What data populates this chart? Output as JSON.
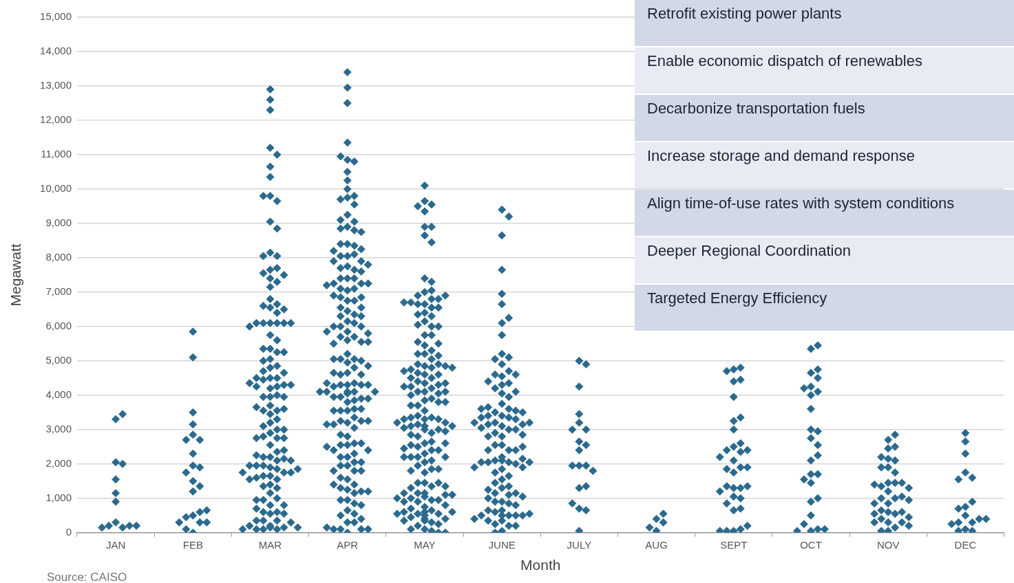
{
  "chart_data": {
    "type": "scatter",
    "xlabel": "Month",
    "ylabel": "Megawatt",
    "categories": [
      "JAN",
      "FEB",
      "MAR",
      "APR",
      "MAY",
      "JUNE",
      "JULY",
      "AUG",
      "SEPT",
      "OCT",
      "NOV",
      "DEC"
    ],
    "ylim": [
      0,
      15000
    ],
    "yticks": [
      0,
      {
        "value": 1000,
        "label": "1,000"
      },
      {
        "value": 2000,
        "label": "2,000"
      },
      {
        "value": 3000,
        "label": "3,000"
      },
      {
        "value": 4000,
        "label": "4,000"
      },
      {
        "value": 5000,
        "label": "5,000"
      },
      {
        "value": 6000,
        "label": "6,000"
      },
      {
        "value": 7000,
        "label": "7,000"
      },
      {
        "value": 8000,
        "label": "8,000"
      },
      {
        "value": 9000,
        "label": "9,000"
      },
      {
        "value": 10000,
        "label": "10,000"
      },
      {
        "value": 11000,
        "label": "11,000"
      },
      {
        "value": 12000,
        "label": "12,000"
      },
      {
        "value": 13000,
        "label": "13,000"
      },
      {
        "value": 14000,
        "label": "14,000"
      },
      {
        "value": 15000,
        "label": "15,000"
      }
    ],
    "grid": "y",
    "legend": false,
    "marker": "diamond",
    "annotations": [
      "Retrofit existing power plants",
      "Enable economic dispatch of renewables",
      "Decarbonize transportation fuels",
      "Increase storage and demand response",
      "Align time-of-use rates with system conditions",
      "Deeper Regional Coordination",
      "Targeted Energy Efficiency",
      "Source: CAISO"
    ],
    "series": [
      {
        "color": "#2b6a8e",
        "x": [
          "JAN",
          "JAN",
          "JAN",
          "JAN",
          "JAN",
          "JAN",
          "JAN",
          "JAN",
          "JAN",
          "JAN",
          "JAN",
          "JAN",
          "JAN",
          "FEB",
          "FEB",
          "FEB",
          "FEB",
          "FEB",
          "FEB",
          "FEB",
          "FEB",
          "FEB",
          "FEB",
          "FEB",
          "FEB",
          "FEB",
          "FEB",
          "FEB",
          "FEB",
          "FEB",
          "FEB",
          "FEB",
          "FEB",
          "FEB",
          "FEB",
          "FEB",
          "MAR",
          "MAR",
          "MAR",
          "MAR",
          "MAR",
          "MAR",
          "MAR",
          "MAR",
          "MAR",
          "MAR",
          "MAR",
          "MAR",
          "MAR",
          "MAR",
          "MAR",
          "MAR",
          "MAR",
          "MAR",
          "MAR",
          "MAR",
          "MAR",
          "MAR",
          "MAR",
          "MAR",
          "MAR",
          "MAR",
          "MAR",
          "MAR",
          "MAR",
          "MAR",
          "MAR",
          "MAR",
          "MAR",
          "MAR",
          "MAR",
          "MAR",
          "MAR",
          "MAR",
          "MAR",
          "MAR",
          "MAR",
          "MAR",
          "MAR",
          "MAR",
          "MAR",
          "MAR",
          "MAR",
          "MAR",
          "MAR",
          "MAR",
          "MAR",
          "MAR",
          "MAR",
          "MAR",
          "MAR",
          "MAR",
          "MAR",
          "MAR",
          "MAR",
          "MAR",
          "MAR",
          "MAR",
          "MAR",
          "MAR",
          "MAR",
          "MAR",
          "MAR",
          "MAR",
          "MAR",
          "MAR",
          "MAR",
          "MAR",
          "MAR",
          "MAR",
          "MAR",
          "MAR",
          "MAR",
          "MAR",
          "MAR",
          "MAR",
          "MAR",
          "MAR",
          "MAR",
          "MAR",
          "MAR",
          "MAR",
          "MAR",
          "MAR",
          "MAR",
          "MAR",
          "MAR",
          "MAR",
          "MAR",
          "MAR",
          "MAR",
          "MAR",
          "MAR",
          "MAR",
          "MAR",
          "MAR",
          "MAR",
          "MAR",
          "MAR",
          "MAR",
          "MAR",
          "MAR",
          "MAR",
          "MAR",
          "MAR",
          "MAR",
          "MAR",
          "MAR",
          "MAR",
          "MAR",
          "MAR",
          "MAR",
          "MAR",
          "MAR",
          "MAR",
          "MAR",
          "MAR",
          "MAR",
          "MAR",
          "MAR",
          "MAR",
          "MAR",
          "MAR",
          "APR",
          "APR",
          "APR",
          "APR",
          "APR",
          "APR",
          "APR",
          "APR",
          "APR",
          "APR",
          "APR",
          "APR",
          "APR",
          "APR",
          "APR",
          "APR",
          "APR",
          "APR",
          "APR",
          "APR",
          "APR",
          "APR",
          "APR",
          "APR",
          "APR",
          "APR",
          "APR",
          "APR",
          "APR",
          "APR",
          "APR",
          "APR",
          "APR",
          "APR",
          "APR",
          "APR",
          "APR",
          "APR",
          "APR",
          "APR",
          "APR",
          "APR",
          "APR",
          "APR",
          "APR",
          "APR",
          "APR",
          "APR",
          "APR",
          "APR",
          "APR",
          "APR",
          "APR",
          "APR",
          "APR",
          "APR",
          "APR",
          "APR",
          "APR",
          "APR",
          "APR",
          "APR",
          "APR",
          "APR",
          "APR",
          "APR",
          "APR",
          "APR",
          "APR",
          "APR",
          "APR",
          "APR",
          "APR",
          "APR",
          "APR",
          "APR",
          "APR",
          "APR",
          "APR",
          "APR",
          "APR",
          "APR",
          "APR",
          "APR",
          "APR",
          "APR",
          "APR",
          "APR",
          "APR",
          "APR",
          "APR",
          "APR",
          "APR",
          "APR",
          "APR",
          "APR",
          "APR",
          "APR",
          "APR",
          "APR",
          "APR",
          "APR",
          "APR",
          "APR",
          "APR",
          "APR",
          "APR",
          "APR",
          "APR",
          "APR",
          "APR",
          "APR",
          "APR",
          "APR",
          "APR",
          "APR",
          "APR",
          "APR",
          "APR",
          "APR",
          "APR",
          "APR",
          "APR",
          "APR",
          "APR",
          "APR",
          "APR",
          "APR",
          "APR",
          "APR",
          "APR",
          "APR",
          "APR",
          "APR",
          "APR",
          "APR",
          "APR",
          "APR",
          "APR",
          "APR",
          "APR",
          "APR",
          "APR",
          "APR",
          "APR",
          "APR",
          "APR",
          "APR",
          "APR",
          "APR",
          "APR",
          "APR",
          "APR",
          "APR",
          "APR",
          "APR",
          "APR",
          "APR",
          "APR",
          "MAY",
          "MAY",
          "MAY",
          "MAY",
          "MAY",
          "MAY",
          "MAY",
          "MAY",
          "MAY",
          "MAY",
          "MAY",
          "MAY",
          "MAY",
          "MAY",
          "MAY",
          "MAY",
          "MAY",
          "MAY",
          "MAY",
          "MAY",
          "MAY",
          "MAY",
          "MAY",
          "MAY",
          "MAY",
          "MAY",
          "MAY",
          "MAY",
          "MAY",
          "MAY",
          "MAY",
          "MAY",
          "MAY",
          "MAY",
          "MAY",
          "MAY",
          "MAY",
          "MAY",
          "MAY",
          "MAY",
          "MAY",
          "MAY",
          "MAY",
          "MAY",
          "MAY",
          "MAY",
          "MAY",
          "MAY",
          "MAY",
          "MAY",
          "MAY",
          "MAY",
          "MAY",
          "MAY",
          "MAY",
          "MAY",
          "MAY",
          "MAY",
          "MAY",
          "MAY",
          "MAY",
          "MAY",
          "MAY",
          "MAY",
          "MAY",
          "MAY",
          "MAY",
          "MAY",
          "MAY",
          "MAY",
          "MAY",
          "MAY",
          "MAY",
          "MAY",
          "MAY",
          "MAY",
          "MAY",
          "MAY",
          "MAY",
          "MAY",
          "MAY",
          "MAY",
          "MAY",
          "MAY",
          "MAY",
          "MAY",
          "MAY",
          "MAY",
          "MAY",
          "MAY",
          "MAY",
          "MAY",
          "MAY",
          "MAY",
          "MAY",
          "MAY",
          "MAY",
          "MAY",
          "MAY",
          "MAY",
          "MAY",
          "MAY",
          "MAY",
          "MAY",
          "MAY",
          "MAY",
          "MAY",
          "MAY",
          "MAY",
          "MAY",
          "MAY",
          "MAY",
          "MAY",
          "MAY",
          "MAY",
          "MAY",
          "MAY",
          "MAY",
          "MAY",
          "MAY",
          "MAY",
          "MAY",
          "MAY",
          "MAY",
          "MAY",
          "MAY",
          "MAY",
          "MAY",
          "MAY",
          "MAY",
          "MAY",
          "MAY",
          "MAY",
          "MAY",
          "MAY",
          "MAY",
          "MAY",
          "MAY",
          "MAY",
          "MAY",
          "MAY",
          "MAY",
          "MAY",
          "MAY",
          "MAY",
          "MAY",
          "MAY",
          "MAY",
          "MAY",
          "MAY",
          "MAY",
          "MAY",
          "MAY",
          "JUNE",
          "JUNE",
          "JUNE",
          "JUNE",
          "JUNE",
          "JUNE",
          "JUNE",
          "JUNE",
          "JUNE",
          "JUNE",
          "JUNE",
          "JUNE",
          "JUNE",
          "JUNE",
          "JUNE",
          "JUNE",
          "JUNE",
          "JUNE",
          "JUNE",
          "JUNE",
          "JUNE",
          "JUNE",
          "JUNE",
          "JUNE",
          "JUNE",
          "JUNE",
          "JUNE",
          "JUNE",
          "JUNE",
          "JUNE",
          "JUNE",
          "JUNE",
          "JUNE",
          "JUNE",
          "JUNE",
          "JUNE",
          "JUNE",
          "JUNE",
          "JUNE",
          "JUNE",
          "JUNE",
          "JUNE",
          "JUNE",
          "JUNE",
          "JUNE",
          "JUNE",
          "JUNE",
          "JUNE",
          "JUNE",
          "JUNE",
          "JUNE",
          "JUNE",
          "JUNE",
          "JUNE",
          "JUNE",
          "JUNE",
          "JUNE",
          "JUNE",
          "JUNE",
          "JUNE",
          "JUNE",
          "JUNE",
          "JUNE",
          "JUNE",
          "JUNE",
          "JUNE",
          "JUNE",
          "JUNE",
          "JUNE",
          "JUNE",
          "JUNE",
          "JUNE",
          "JUNE",
          "JUNE",
          "JUNE",
          "JUNE",
          "JUNE",
          "JUNE",
          "JUNE",
          "JUNE",
          "JUNE",
          "JUNE",
          "JUNE",
          "JUNE",
          "JUNE",
          "JUNE",
          "JUNE",
          "JUNE",
          "JUNE",
          "JUNE",
          "JUNE",
          "JUNE",
          "JUNE",
          "JUNE",
          "JUNE",
          "JUNE",
          "JUNE",
          "JUNE",
          "JUNE",
          "JUNE",
          "JULY",
          "JULY",
          "JULY",
          "JULY",
          "JULY",
          "JULY",
          "JULY",
          "JULY",
          "JULY",
          "JULY",
          "JULY",
          "JULY",
          "JULY",
          "JULY",
          "JULY",
          "JULY",
          "JULY",
          "JULY",
          "JULY",
          "JULY",
          "AUG",
          "AUG",
          "AUG",
          "AUG",
          "AUG",
          "SEPT",
          "SEPT",
          "SEPT",
          "SEPT",
          "SEPT",
          "SEPT",
          "SEPT",
          "SEPT",
          "SEPT",
          "SEPT",
          "SEPT",
          "SEPT",
          "SEPT",
          "SEPT",
          "SEPT",
          "SEPT",
          "SEPT",
          "SEPT",
          "SEPT",
          "SEPT",
          "SEPT",
          "SEPT",
          "SEPT",
          "SEPT",
          "SEPT",
          "SEPT",
          "SEPT",
          "SEPT",
          "SEPT",
          "SEPT",
          "SEPT",
          "SEPT",
          "SEPT",
          "SEPT",
          "SEPT",
          "OCT",
          "OCT",
          "OCT",
          "OCT",
          "OCT",
          "OCT",
          "OCT",
          "OCT",
          "OCT",
          "OCT",
          "OCT",
          "OCT",
          "OCT",
          "OCT",
          "OCT",
          "OCT",
          "OCT",
          "OCT",
          "OCT",
          "OCT",
          "OCT",
          "OCT",
          "OCT",
          "OCT",
          "OCT",
          "OCT",
          "OCT",
          "OCT",
          "NOV",
          "NOV",
          "NOV",
          "NOV",
          "NOV",
          "NOV",
          "NOV",
          "NOV",
          "NOV",
          "NOV",
          "NOV",
          "NOV",
          "NOV",
          "NOV",
          "NOV",
          "NOV",
          "NOV",
          "NOV",
          "NOV",
          "NOV",
          "NOV",
          "NOV",
          "NOV",
          "NOV",
          "NOV",
          "NOV",
          "NOV",
          "NOV",
          "NOV",
          "NOV",
          "NOV",
          "NOV",
          "NOV",
          "NOV",
          "NOV",
          "NOV",
          "NOV",
          "DEC",
          "DEC",
          "DEC",
          "DEC",
          "DEC",
          "DEC",
          "DEC",
          "DEC",
          "DEC",
          "DEC",
          "DEC",
          "DEC",
          "DEC",
          "DEC",
          "DEC",
          "DEC",
          "DEC",
          "DEC"
        ],
        "values": [
          3300,
          3450,
          2050,
          2000,
          1550,
          1150,
          900,
          300,
          150,
          200,
          200,
          150,
          200,
          5850,
          5100,
          3500,
          3150,
          2850,
          2700,
          2700,
          2300,
          1950,
          1900,
          1750,
          1500,
          1350,
          1200,
          500,
          600,
          450,
          300,
          650,
          300,
          300,
          0,
          100,
          12900,
          12600,
          12300,
          11200,
          11000,
          10650,
          10350,
          9800,
          9650,
          9800,
          9050,
          8850,
          8150,
          8050,
          8050,
          7650,
          7700,
          7550,
          7400,
          7500,
          7300,
          7150,
          6800,
          6650,
          6550,
          6400,
          6600,
          6500,
          6100,
          6100,
          6100,
          6100,
          6100,
          6100,
          6000,
          5750,
          5600,
          5350,
          5250,
          5350,
          5250,
          5050,
          4850,
          5000,
          4800,
          4700,
          4650,
          4500,
          4500,
          4500,
          4450,
          4300,
          4300,
          4200,
          4350,
          4250,
          4250,
          3950,
          4000,
          3950,
          3950,
          3700,
          3550,
          3450,
          3550,
          3600,
          3650,
          3300,
          3200,
          3100,
          3000,
          3000,
          2900,
          2800,
          2750,
          2750,
          2550,
          2750,
          2350,
          2200,
          2200,
          2150,
          2400,
          2250,
          2100,
          2100,
          1900,
          1850,
          1950,
          1950,
          1950,
          1750,
          1750,
          1850,
          1750,
          1650,
          1650,
          1550,
          1400,
          1600,
          1550,
          1300,
          1350,
          1150,
          1000,
          800,
          950,
          800,
          950,
          550,
          600,
          600,
          700,
          550,
          350,
          350,
          200,
          350,
          150,
          300,
          200,
          100,
          150,
          100,
          100,
          100,
          150,
          13400,
          12950,
          12500,
          11350,
          10850,
          10800,
          10950,
          10500,
          10250,
          10000,
          9800,
          9750,
          9700,
          9550,
          9250,
          9050,
          9100,
          8900,
          8800,
          8850,
          8750,
          8400,
          8350,
          8400,
          8250,
          8200,
          8050,
          8100,
          8050,
          7900,
          7900,
          7750,
          7650,
          7700,
          7800,
          7600,
          7400,
          7400,
          7400,
          7250,
          7250,
          7250,
          7200,
          7050,
          7100,
          7100,
          6750,
          6750,
          6850,
          6850,
          6900,
          6450,
          6550,
          6550,
          6350,
          6300,
          6300,
          6150,
          6100,
          6000,
          6000,
          6000,
          5850,
          5700,
          5800,
          5850,
          5700,
          5600,
          5550,
          5500,
          5550,
          5200,
          5050,
          5050,
          5000,
          5050,
          4950,
          4850,
          4800,
          4650,
          4600,
          4600,
          4650,
          4300,
          4350,
          4300,
          4300,
          4250,
          4300,
          4350,
          4100,
          4100,
          4100,
          4050,
          4100,
          4100,
          3950,
          3850,
          3900,
          3950,
          3900,
          3800,
          3600,
          3550,
          3550,
          3600,
          3550,
          3350,
          3200,
          3250,
          3250,
          3150,
          3250,
          3150,
          3050,
          2800,
          2850,
          2550,
          2600,
          2550,
          2600,
          2400,
          2400,
          2500,
          2200,
          2300,
          2200,
          2050,
          2050,
          1950,
          1800,
          1950,
          1800,
          1800,
          1550,
          1600,
          1400,
          1250,
          1300,
          1200,
          1400,
          1150,
          1200,
          950,
          950,
          850,
          800,
          650,
          550,
          500,
          300,
          400,
          300,
          100,
          100,
          0,
          100,
          100,
          150,
          10100,
          9650,
          9550,
          9350,
          9500,
          8900,
          8900,
          8650,
          8450,
          7400,
          7300,
          7000,
          7050,
          6900,
          6800,
          6650,
          6800,
          6650,
          6550,
          6700,
          6550,
          6400,
          6900,
          6700,
          6350,
          6300,
          6150,
          6000,
          6050,
          6000,
          5750,
          5750,
          5550,
          5450,
          5300,
          5500,
          5200,
          5200,
          5150,
          5050,
          4850,
          4900,
          4800,
          4900,
          4750,
          4850,
          4700,
          4600,
          4800,
          4650,
          4600,
          4500,
          4500,
          4400,
          4350,
          4300,
          4350,
          4200,
          4250,
          4100,
          4100,
          4100,
          4250,
          4050,
          3900,
          4000,
          3850,
          3700,
          3800,
          3700,
          3800,
          3550,
          3350,
          3400,
          3300,
          3150,
          3000,
          2900,
          3300,
          3350,
          3200,
          3100,
          3000,
          3300,
          3100,
          2950,
          3200,
          3100,
          3050,
          2800,
          2850,
          2600,
          2400,
          2650,
          2500,
          2400,
          2550,
          2600,
          2450,
          2300,
          2200,
          2050,
          1850,
          2200,
          2200,
          2100,
          2200,
          1950,
          1850,
          1750,
          1800,
          1450,
          1350,
          1450,
          1450,
          1300,
          1150,
          950,
          1150,
          950,
          1100,
          1150,
          1000,
          1350,
          1100,
          1000,
          1050,
          900,
          900,
          750,
          800,
          650,
          550,
          550,
          700,
          600,
          350,
          600,
          450,
          300,
          100,
          400,
          200,
          50,
          350,
          550,
          400,
          250,
          100,
          600,
          500,
          0,
          0,
          9400,
          9200,
          8650,
          7650,
          6950,
          6650,
          6100,
          6250,
          5750,
          5200,
          5100,
          5050,
          4900,
          4700,
          4550,
          4600,
          4350,
          4600,
          4400,
          4300,
          4050,
          3950,
          4200,
          4100,
          3750,
          3600,
          3400,
          3500,
          3350,
          3200,
          3100,
          3550,
          3400,
          3300,
          3150,
          3000,
          3650,
          3500,
          3350,
          3150,
          3000,
          3600,
          3200,
          3050,
          2900,
          3200,
          2800,
          2800,
          2850,
          2550,
          2400,
          2200,
          2050,
          2550,
          2400,
          2400,
          2500,
          2100,
          2000,
          1850,
          1650,
          2050,
          1900,
          2050,
          2050,
          1900,
          2150,
          2100,
          1750,
          1550,
          1350,
          1450,
          1300,
          1150,
          1100,
          1150,
          900,
          1250,
          1050,
          900,
          1000,
          850,
          650,
          500,
          800,
          600,
          650,
          500,
          350,
          200,
          500,
          250,
          350,
          500,
          550,
          400,
          200,
          500,
          50,
          0,
          5000,
          4900,
          4250,
          3450,
          3200,
          3000,
          3000,
          2650,
          2550,
          2400,
          1950,
          1950,
          1950,
          1800,
          1300,
          1350,
          700,
          650,
          850,
          50,
          400,
          50,
          300,
          150,
          550,
          4750,
          4800,
          4700,
          4400,
          4450,
          3950,
          3250,
          3350,
          3000,
          2500,
          2600,
          2400,
          2350,
          2400,
          2100,
          2200,
          1900,
          1750,
          1850,
          1900,
          1300,
          1300,
          1350,
          1350,
          1200,
          1050,
          1000,
          650,
          850,
          700,
          50,
          100,
          50,
          200,
          50,
          5350,
          5450,
          4650,
          4750,
          4500,
          4250,
          4000,
          4100,
          4200,
          3600,
          3000,
          2750,
          2550,
          2950,
          2100,
          2250,
          1700,
          1700,
          1550,
          1450,
          900,
          1000,
          500,
          50,
          100,
          250,
          100,
          50,
          2700,
          2500,
          2850,
          2450,
          2150,
          1900,
          2100,
          1900,
          2200,
          1750,
          1450,
          1450,
          1350,
          1450,
          1200,
          1000,
          1400,
          1300,
          1000,
          850,
          600,
          300,
          1050,
          850,
          550,
          400,
          950,
          600,
          150,
          650,
          550,
          300,
          50,
          450,
          300,
          200,
          50,
          2650,
          2900,
          2300,
          1750,
          1600,
          1550,
          750,
          900,
          700,
          500,
          300,
          300,
          100,
          400,
          250,
          50,
          50,
          400
        ]
      }
    ]
  }
}
